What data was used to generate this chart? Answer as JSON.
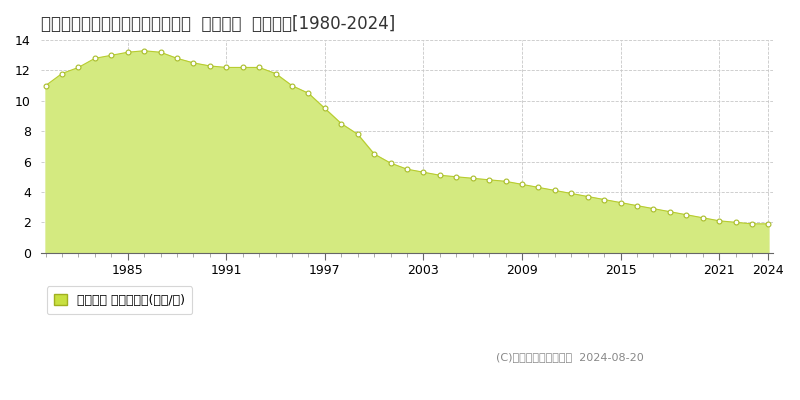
{
  "title": "北海道赤平市本町１丁目２番２外  地価公示  地価推移[1980-2024]",
  "years": [
    1980,
    1981,
    1982,
    1983,
    1984,
    1985,
    1986,
    1987,
    1988,
    1989,
    1990,
    1991,
    1992,
    1993,
    1994,
    1995,
    1996,
    1997,
    1998,
    1999,
    2000,
    2001,
    2002,
    2003,
    2004,
    2005,
    2006,
    2007,
    2008,
    2009,
    2010,
    2011,
    2012,
    2013,
    2014,
    2015,
    2016,
    2017,
    2018,
    2019,
    2020,
    2021,
    2022,
    2023,
    2024
  ],
  "values": [
    11.0,
    11.8,
    12.2,
    12.8,
    13.0,
    13.2,
    13.3,
    13.2,
    12.8,
    12.5,
    12.3,
    12.2,
    12.2,
    12.2,
    11.8,
    11.0,
    10.5,
    9.5,
    8.5,
    7.8,
    6.5,
    5.9,
    5.5,
    5.3,
    5.1,
    5.0,
    4.9,
    4.8,
    4.7,
    4.5,
    4.3,
    4.1,
    3.9,
    3.7,
    3.5,
    3.3,
    3.1,
    2.9,
    2.7,
    2.5,
    2.3,
    2.1,
    2.0,
    1.9,
    1.9
  ],
  "fill_color": "#d4ea80",
  "line_color": "#b8cc30",
  "marker_face_color": "#ffffff",
  "marker_edge_color": "#a8bc28",
  "background_color": "#ffffff",
  "grid_color": "#c8c8c8",
  "ylim": [
    0,
    14
  ],
  "yticks": [
    0,
    2,
    4,
    6,
    8,
    10,
    12,
    14
  ],
  "xticks": [
    1985,
    1991,
    1997,
    2003,
    2009,
    2015,
    2021,
    2024
  ],
  "legend_label": "地価公示 平均坪単価(万円/坪)",
  "legend_color": "#c8e040",
  "copyright_text": "(C)土地価格ドットコム  2024-08-20",
  "title_fontsize": 12,
  "axis_fontsize": 9,
  "legend_fontsize": 9
}
